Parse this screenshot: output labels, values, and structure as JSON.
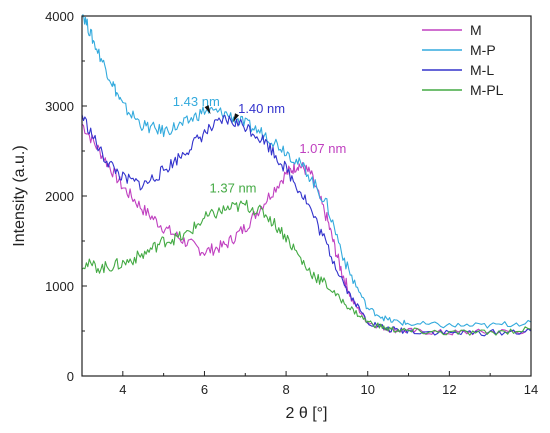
{
  "chart_data": {
    "type": "line",
    "title": "",
    "xlabel": "2 θ [°]",
    "ylabel": "Intensity (a.u.)",
    "xlim": [
      3,
      14
    ],
    "ylim": [
      0,
      4000
    ],
    "x_ticks": [
      4,
      6,
      8,
      10,
      12,
      14
    ],
    "x_tick_labels": [
      "4",
      "6",
      "8",
      "10",
      "12",
      "14"
    ],
    "y_ticks": [
      0,
      1000,
      2000,
      3000,
      4000
    ],
    "y_tick_labels": [
      "0",
      "1000",
      "2000",
      "3000",
      "4000"
    ],
    "grid": false,
    "legend_position": "top-right",
    "series": [
      {
        "name": "M",
        "color": "#c040c0",
        "points": [
          [
            3.0,
            2800
          ],
          [
            3.5,
            2450
          ],
          [
            4.0,
            2100
          ],
          [
            4.5,
            1850
          ],
          [
            5.0,
            1650
          ],
          [
            5.5,
            1500
          ],
          [
            6.0,
            1380
          ],
          [
            6.5,
            1450
          ],
          [
            7.0,
            1650
          ],
          [
            7.5,
            1950
          ],
          [
            8.0,
            2250
          ],
          [
            8.3,
            2350
          ],
          [
            8.6,
            2250
          ],
          [
            9.0,
            1750
          ],
          [
            9.3,
            1250
          ],
          [
            9.6,
            850
          ],
          [
            10.0,
            600
          ],
          [
            10.5,
            520
          ],
          [
            11.0,
            500
          ],
          [
            12.0,
            480
          ],
          [
            13.0,
            490
          ],
          [
            14.0,
            500
          ]
        ]
      },
      {
        "name": "M-P",
        "color": "#33aadd",
        "points": [
          [
            3.0,
            4050
          ],
          [
            3.3,
            3700
          ],
          [
            3.7,
            3300
          ],
          [
            4.0,
            3000
          ],
          [
            4.5,
            2780
          ],
          [
            5.0,
            2720
          ],
          [
            5.5,
            2800
          ],
          [
            6.0,
            2950
          ],
          [
            6.5,
            2920
          ],
          [
            7.0,
            2800
          ],
          [
            7.5,
            2680
          ],
          [
            8.0,
            2500
          ],
          [
            8.5,
            2280
          ],
          [
            9.0,
            1900
          ],
          [
            9.5,
            1200
          ],
          [
            10.0,
            750
          ],
          [
            10.5,
            620
          ],
          [
            11.0,
            580
          ],
          [
            12.0,
            560
          ],
          [
            13.0,
            560
          ],
          [
            14.0,
            600
          ]
        ]
      },
      {
        "name": "M-L",
        "color": "#3333cc",
        "points": [
          [
            3.0,
            2900
          ],
          [
            3.5,
            2450
          ],
          [
            4.0,
            2200
          ],
          [
            4.5,
            2120
          ],
          [
            5.0,
            2280
          ],
          [
            5.5,
            2480
          ],
          [
            6.0,
            2700
          ],
          [
            6.5,
            2850
          ],
          [
            7.0,
            2780
          ],
          [
            7.5,
            2600
          ],
          [
            8.0,
            2300
          ],
          [
            8.5,
            1950
          ],
          [
            9.0,
            1450
          ],
          [
            9.5,
            950
          ],
          [
            10.0,
            600
          ],
          [
            10.5,
            520
          ],
          [
            11.0,
            500
          ],
          [
            12.0,
            480
          ],
          [
            13.0,
            480
          ],
          [
            14.0,
            500
          ]
        ]
      },
      {
        "name": "M-PL",
        "color": "#44aa44",
        "points": [
          [
            3.0,
            1250
          ],
          [
            3.5,
            1200
          ],
          [
            4.0,
            1250
          ],
          [
            4.5,
            1350
          ],
          [
            5.0,
            1500
          ],
          [
            5.5,
            1550
          ],
          [
            6.0,
            1750
          ],
          [
            6.5,
            1850
          ],
          [
            7.0,
            1900
          ],
          [
            7.5,
            1800
          ],
          [
            8.0,
            1550
          ],
          [
            8.5,
            1200
          ],
          [
            9.0,
            1000
          ],
          [
            9.5,
            780
          ],
          [
            10.0,
            600
          ],
          [
            10.5,
            520
          ],
          [
            11.0,
            500
          ],
          [
            12.0,
            480
          ],
          [
            13.0,
            480
          ],
          [
            14.0,
            520
          ]
        ]
      }
    ],
    "annotations": [
      {
        "text": "1.43 nm",
        "x": 5.8,
        "y": 3000,
        "color": "#33aadd",
        "arrow_to": [
          6.15,
          2910
        ]
      },
      {
        "text": "1.40 nm",
        "x": 7.4,
        "y": 2920,
        "color": "#3333cc",
        "arrow_to": [
          6.7,
          2820
        ]
      },
      {
        "text": "1.07 nm",
        "x": 8.9,
        "y": 2480,
        "color": "#c040c0"
      },
      {
        "text": "1.37 nm",
        "x": 6.7,
        "y": 2040,
        "color": "#44aa44"
      }
    ]
  }
}
